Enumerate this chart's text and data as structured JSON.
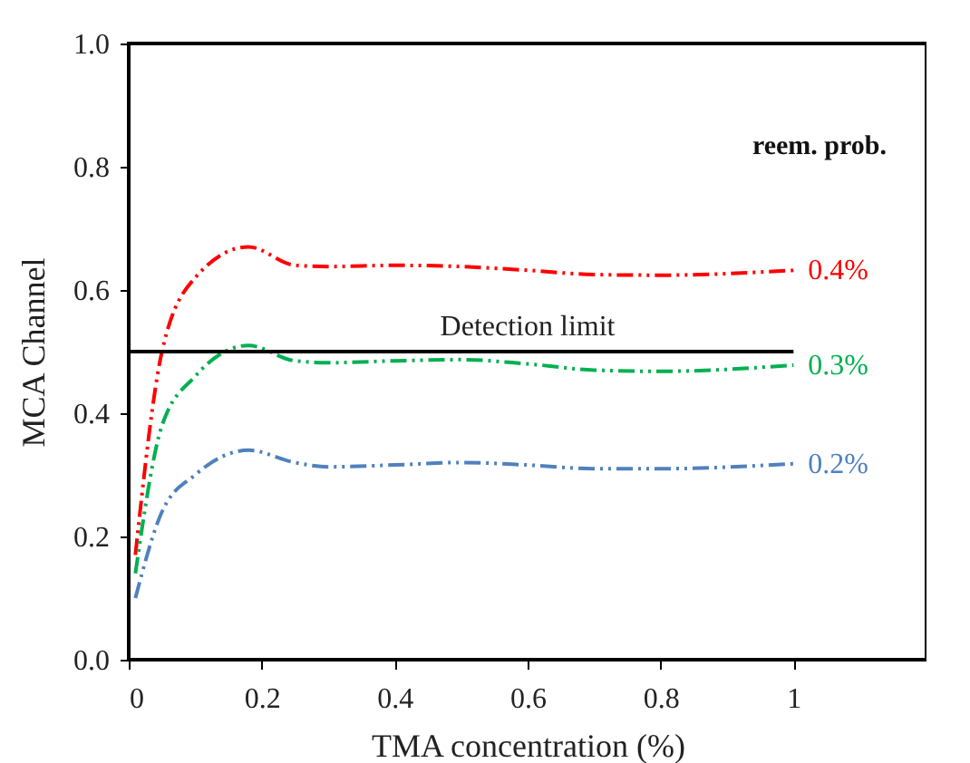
{
  "chart_data": {
    "type": "line",
    "xlabel": "TMA concentration (%)",
    "ylabel": "MCA Channel",
    "legend_title": "reem. prob.",
    "legend": "right",
    "grid": false,
    "line_style": "dashed",
    "marker": "none",
    "xlim": [
      0,
      1.2
    ],
    "xticks": [
      0,
      0.2,
      0.4,
      0.6,
      0.8,
      1
    ],
    "ylim": [
      0,
      1
    ],
    "yticks": [
      {
        "value": 0,
        "label": "0.0"
      },
      {
        "value": 0.2,
        "label": "0.2"
      },
      {
        "value": 0.4,
        "label": "0.4"
      },
      {
        "value": 0.6,
        "label": "0.6"
      },
      {
        "value": 0.8,
        "label": "0.8"
      },
      {
        "value": 1,
        "label": "1.0"
      }
    ],
    "x": [
      0.01,
      0.05,
      0.1,
      0.18,
      0.25,
      0.3,
      0.4,
      0.5,
      0.6,
      0.7,
      0.8,
      1
    ],
    "series": [
      {
        "name": "0.4%",
        "color": "#ff0000",
        "values": [
          0.17,
          0.5,
          0.62,
          0.67,
          0.64,
          0.638,
          0.64,
          0.638,
          0.632,
          0.625,
          0.624,
          0.632
        ]
      },
      {
        "name": "0.3%",
        "color": "#00b050",
        "values": [
          0.14,
          0.38,
          0.46,
          0.51,
          0.485,
          0.482,
          0.485,
          0.487,
          0.48,
          0.47,
          0.468,
          0.478
        ]
      },
      {
        "name": "0.2%",
        "color": "#4f81bd",
        "values": [
          0.1,
          0.24,
          0.3,
          0.34,
          0.32,
          0.313,
          0.316,
          0.32,
          0.316,
          0.31,
          0.31,
          0.318
        ]
      }
    ],
    "ref_lines": [
      {
        "axis": "y",
        "value": 0.5,
        "label": "Detection limit",
        "color": "#000000"
      }
    ]
  }
}
